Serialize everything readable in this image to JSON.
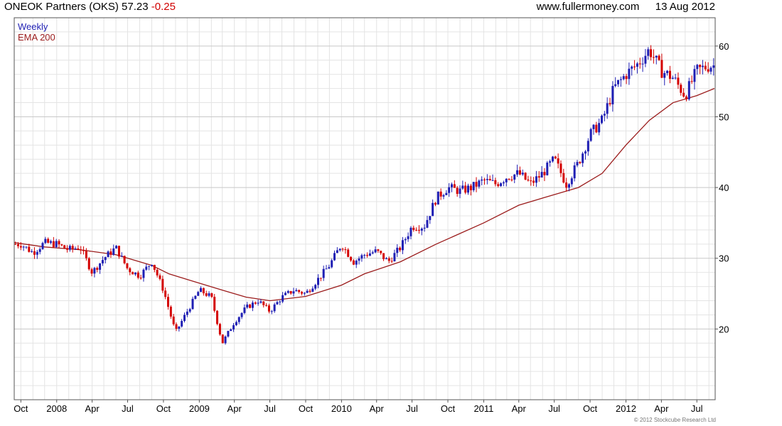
{
  "header": {
    "name": "ONEOK Partners (OKS)",
    "price": "57.23",
    "change": "-0.25",
    "website": "www.fullermoney.com",
    "date": "13 Aug 2012"
  },
  "legend": {
    "weekly": "Weekly",
    "ema": "EMA 200"
  },
  "footer": {
    "copyright": "© 2012 Stockcube Research Ltd"
  },
  "colors": {
    "up": "#1f1fb4",
    "down": "#d40000",
    "ema": "#9b1c1c",
    "grid": "#e4e4e4",
    "grid_major": "#c8c8c8",
    "axis": "#555555"
  },
  "chart_data": {
    "type": "line",
    "title": "ONEOK Partners (OKS) 57.23 -0.25",
    "frequency": "Weekly",
    "x_tick_labels": [
      "Oct",
      "2008",
      "Apr",
      "Jul",
      "Oct",
      "2009",
      "Apr",
      "Jul",
      "Oct",
      "2010",
      "Apr",
      "Jul",
      "Oct",
      "2011",
      "Apr",
      "Jul",
      "Oct",
      "2012",
      "Apr",
      "Jul"
    ],
    "y_ticks": [
      20,
      30,
      40,
      50,
      60
    ],
    "ylim": [
      10,
      64
    ],
    "y_axis_position": "right",
    "grid": true,
    "legend_placement": "top-left",
    "series": [
      {
        "name": "Weekly",
        "points": [
          [
            "2007-10-01",
            32.0
          ],
          [
            "2007-11-01",
            30.8
          ],
          [
            "2007-12-01",
            32.2
          ],
          [
            "2008-01-01",
            32.0
          ],
          [
            "2008-02-01",
            31.2
          ],
          [
            "2008-03-01",
            31.6
          ],
          [
            "2008-04-01",
            28.0
          ],
          [
            "2008-05-01",
            30.0
          ],
          [
            "2008-06-01",
            31.5
          ],
          [
            "2008-07-01",
            28.5
          ],
          [
            "2008-08-01",
            27.5
          ],
          [
            "2008-09-01",
            29.5
          ],
          [
            "2008-10-01",
            25.5
          ],
          [
            "2008-11-01",
            19.5
          ],
          [
            "2008-12-01",
            22.5
          ],
          [
            "2009-01-01",
            25.5
          ],
          [
            "2009-02-01",
            24.5
          ],
          [
            "2009-03-01",
            18.0
          ],
          [
            "2009-04-01",
            21.0
          ],
          [
            "2009-05-01",
            23.0
          ],
          [
            "2009-06-01",
            24.0
          ],
          [
            "2009-07-01",
            22.5
          ],
          [
            "2009-08-01",
            24.5
          ],
          [
            "2009-09-01",
            25.5
          ],
          [
            "2009-10-01",
            25.0
          ],
          [
            "2009-11-01",
            27.0
          ],
          [
            "2009-12-01",
            29.0
          ],
          [
            "2010-01-01",
            32.0
          ],
          [
            "2010-02-01",
            29.5
          ],
          [
            "2010-03-01",
            30.5
          ],
          [
            "2010-04-01",
            31.0
          ],
          [
            "2010-05-01",
            29.5
          ],
          [
            "2010-06-01",
            31.5
          ],
          [
            "2010-07-01",
            34.5
          ],
          [
            "2010-08-01",
            34.5
          ],
          [
            "2010-09-01",
            38.5
          ],
          [
            "2010-10-01",
            40.0
          ],
          [
            "2010-11-01",
            39.5
          ],
          [
            "2010-12-01",
            40.0
          ],
          [
            "2011-01-01",
            41.0
          ],
          [
            "2011-02-01",
            40.5
          ],
          [
            "2011-03-01",
            41.5
          ],
          [
            "2011-04-01",
            42.0
          ],
          [
            "2011-05-01",
            40.5
          ],
          [
            "2011-06-01",
            42.0
          ],
          [
            "2011-07-01",
            44.0
          ],
          [
            "2011-08-01",
            40.5
          ],
          [
            "2011-09-01",
            43.5
          ],
          [
            "2011-10-01",
            47.5
          ],
          [
            "2011-11-01",
            49.5
          ],
          [
            "2011-12-01",
            54.0
          ],
          [
            "2012-01-01",
            56.0
          ],
          [
            "2012-02-01",
            57.5
          ],
          [
            "2012-03-01",
            59.5
          ],
          [
            "2012-04-01",
            56.5
          ],
          [
            "2012-05-01",
            55.5
          ],
          [
            "2012-06-01",
            53.0
          ],
          [
            "2012-07-01",
            56.5
          ],
          [
            "2012-08-01",
            57.23
          ]
        ]
      },
      {
        "name": "EMA 200",
        "points": [
          [
            "2007-09-15",
            32.2
          ],
          [
            "2007-12-01",
            31.6
          ],
          [
            "2008-03-01",
            31.2
          ],
          [
            "2008-06-01",
            30.5
          ],
          [
            "2008-09-01",
            29.0
          ],
          [
            "2008-10-15",
            27.8
          ],
          [
            "2008-12-01",
            27.0
          ],
          [
            "2009-03-01",
            25.5
          ],
          [
            "2009-05-01",
            24.5
          ],
          [
            "2009-07-01",
            24.0
          ],
          [
            "2009-10-01",
            24.6
          ],
          [
            "2010-01-01",
            26.2
          ],
          [
            "2010-03-01",
            27.8
          ],
          [
            "2010-06-01",
            29.5
          ],
          [
            "2010-09-01",
            32.0
          ],
          [
            "2011-01-01",
            35.0
          ],
          [
            "2011-04-01",
            37.5
          ],
          [
            "2011-07-01",
            39.0
          ],
          [
            "2011-09-01",
            40.0
          ],
          [
            "2011-11-01",
            42.0
          ],
          [
            "2012-01-01",
            46.0
          ],
          [
            "2012-03-01",
            49.5
          ],
          [
            "2012-05-01",
            52.0
          ],
          [
            "2012-07-01",
            53.0
          ],
          [
            "2012-08-15",
            54.0
          ]
        ]
      }
    ]
  }
}
